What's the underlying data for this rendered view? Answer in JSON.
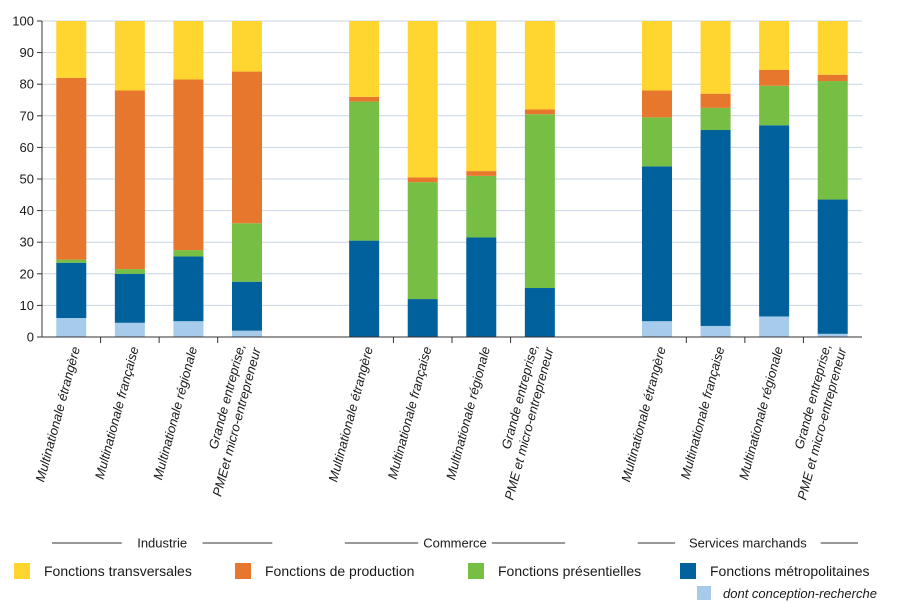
{
  "chart_data": {
    "type": "bar",
    "stacked": true,
    "ylim": [
      0,
      100
    ],
    "yticks": [
      0,
      10,
      20,
      30,
      40,
      50,
      60,
      70,
      80,
      90,
      100
    ],
    "grid": true,
    "groups": [
      {
        "name": "Industrie",
        "categories": [
          [
            "Multinationale étrangère"
          ],
          [
            "Multinationale française"
          ],
          [
            "Multinationale régionale"
          ],
          [
            "Grande entreprise,",
            "PMEet micro-entrepreneur"
          ]
        ],
        "values": {
          "metropolitaines": [
            23.5,
            20,
            25.5,
            17.5
          ],
          "conception": [
            6,
            4.5,
            5,
            2
          ],
          "presentielles": [
            1,
            1.5,
            2,
            18.5
          ],
          "production": [
            57.5,
            56.5,
            54,
            48
          ],
          "transversales": [
            18,
            22,
            18.5,
            16
          ]
        }
      },
      {
        "name": "Commerce",
        "categories": [
          [
            "Multinationale étrangère"
          ],
          [
            "Multinationale française"
          ],
          [
            "Multinationale régionale"
          ],
          [
            "Grande entreprise,",
            "PME et micro-entrepreneur"
          ]
        ],
        "values": {
          "metropolitaines": [
            30.5,
            12,
            31.5,
            15.5
          ],
          "conception": [
            0,
            0,
            0,
            0
          ],
          "presentielles": [
            44,
            37,
            19.5,
            55
          ],
          "production": [
            1.5,
            1.5,
            1.5,
            1.5
          ],
          "transversales": [
            24,
            49.5,
            47.5,
            28
          ]
        }
      },
      {
        "name": "Services marchands",
        "categories": [
          [
            "Multinationale étrangère"
          ],
          [
            "Multinationale française"
          ],
          [
            "Multinationale régionale"
          ],
          [
            "Grande entreprise,",
            "PME et micro-entrepreneur"
          ]
        ],
        "values": {
          "metropolitaines": [
            54,
            65.5,
            67,
            43.5
          ],
          "conception": [
            5,
            3.5,
            6.5,
            1
          ],
          "presentielles": [
            15.5,
            7,
            12.5,
            37.5
          ],
          "production": [
            8.5,
            4.5,
            5,
            2
          ],
          "transversales": [
            22,
            23,
            15.5,
            17
          ]
        }
      }
    ],
    "legend": [
      {
        "key": "transversales",
        "label": "Fonctions transversales",
        "color": "#ffd530"
      },
      {
        "key": "production",
        "label": "Fonctions de production",
        "color": "#e8772e"
      },
      {
        "key": "presentielles",
        "label": "Fonctions présentielles",
        "color": "#76bf44"
      },
      {
        "key": "metropolitaines",
        "label": "Fonctions métropolitaines",
        "color": "#00619c"
      },
      {
        "key": "conception",
        "label": "dont conception-recherche",
        "color": "#a7cbea"
      }
    ]
  }
}
